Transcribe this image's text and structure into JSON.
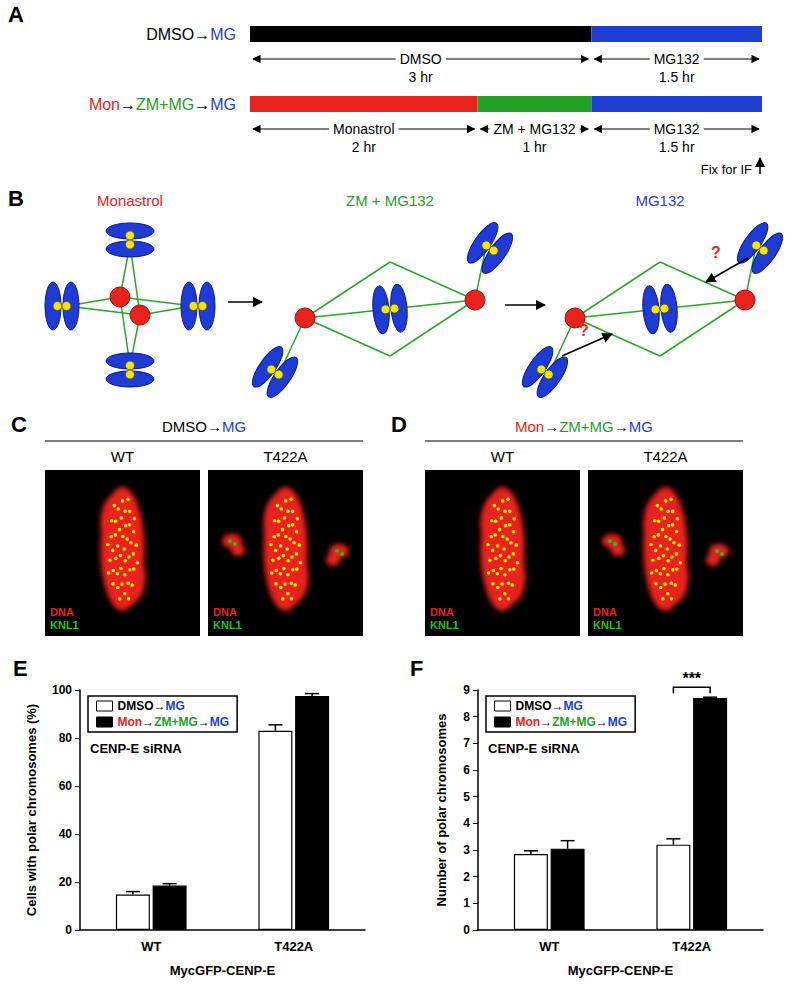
{
  "label_colors": {
    "DMSO": "#000000",
    "MG": "#1c3fd1",
    "Mon": "#e8231c",
    "ZM+MG": "#22a022"
  },
  "panel_a": {
    "label": "A",
    "rows": [
      {
        "name": "DMSO→MG",
        "segments": [
          {
            "text": "DMSO",
            "hours": 3,
            "duration": "3 hr",
            "color": "#000000"
          },
          {
            "text": "MG132",
            "hours": 1.5,
            "duration": "1.5 hr",
            "color": "#1c3fd1"
          }
        ]
      },
      {
        "name": "Mon→ZM+MG→MG",
        "segments": [
          {
            "text": "Monastrol",
            "hours": 2,
            "duration": "2 hr",
            "color": "#e8231c"
          },
          {
            "text": "ZM + MG132",
            "hours": 1,
            "duration": "1 hr",
            "color": "#22a022"
          },
          {
            "text": "MG132",
            "hours": 1.5,
            "duration": "1.5 hr",
            "color": "#1c3fd1"
          }
        ]
      }
    ],
    "end_note": "Fix for IF"
  },
  "panel_b": {
    "label": "B",
    "stages": [
      {
        "text": "Monastrol",
        "color": "#e8231c"
      },
      {
        "text": "ZM + MG132",
        "color": "#22a022"
      },
      {
        "text": "MG132",
        "color": "#1c3fd1"
      }
    ],
    "marks": [
      "?",
      "?"
    ]
  },
  "panels_cd": [
    {
      "label": "C",
      "title": "DMSO→MG",
      "images": [
        {
          "label": "WT",
          "polar_chromosomes": 0
        },
        {
          "label": "T422A",
          "polar_chromosomes": 2
        }
      ],
      "stains": [
        {
          "text": "DNA",
          "color": "#e8231c"
        },
        {
          "text": "KNL1",
          "color": "#22c022"
        }
      ]
    },
    {
      "label": "D",
      "title": "Mon→ZM+MG→MG",
      "images": [
        {
          "label": "WT",
          "polar_chromosomes": 0
        },
        {
          "label": "T422A",
          "polar_chromosomes": 2
        }
      ],
      "stains": [
        {
          "text": "DNA",
          "color": "#e8231c"
        },
        {
          "text": "KNL1",
          "color": "#22c022"
        }
      ]
    }
  ],
  "chart_data": [
    {
      "type": "bar",
      "title": "E",
      "categories": [
        "WT",
        "T422A"
      ],
      "x_label": "MycGFP-CENP-E",
      "y_label": "Cells with polar chromosomes (%)",
      "ylim": [
        0,
        100
      ],
      "yticks": [
        0,
        20,
        40,
        60,
        80,
        100
      ],
      "grid": false,
      "legend": "top-left",
      "annotations": [
        {
          "text": "CENP-E siRNA"
        }
      ],
      "series": [
        {
          "name": "DMSO→MG",
          "color": "#ffffff",
          "values": [
            14.8,
            83
          ],
          "errors": [
            1.2,
            2.5
          ]
        },
        {
          "name": "Mon→ZM+MG→MG",
          "color": "#000000",
          "values": [
            18.5,
            97.5
          ],
          "errors": [
            0.8,
            1
          ]
        }
      ]
    },
    {
      "type": "bar",
      "title": "F",
      "categories": [
        "WT",
        "T422A"
      ],
      "x_label": "MycGFP-CENP-E",
      "y_label": "Number of polar chromosomes",
      "ylim": [
        0,
        9
      ],
      "yticks": [
        0,
        1,
        2,
        3,
        4,
        5,
        6,
        7,
        8,
        9
      ],
      "grid": false,
      "legend": "top-left",
      "annotations": [
        {
          "text": "CENP-E siRNA"
        },
        {
          "text": "***",
          "category": "T422A"
        }
      ],
      "series": [
        {
          "name": "DMSO→MG",
          "color": "#ffffff",
          "values": [
            2.85,
            3.2
          ],
          "errors": [
            0.12,
            0.22
          ]
        },
        {
          "name": "Mon→ZM+MG→MG",
          "color": "#000000",
          "values": [
            3.05,
            8.7
          ],
          "errors": [
            0.3,
            0.03
          ]
        }
      ]
    }
  ]
}
